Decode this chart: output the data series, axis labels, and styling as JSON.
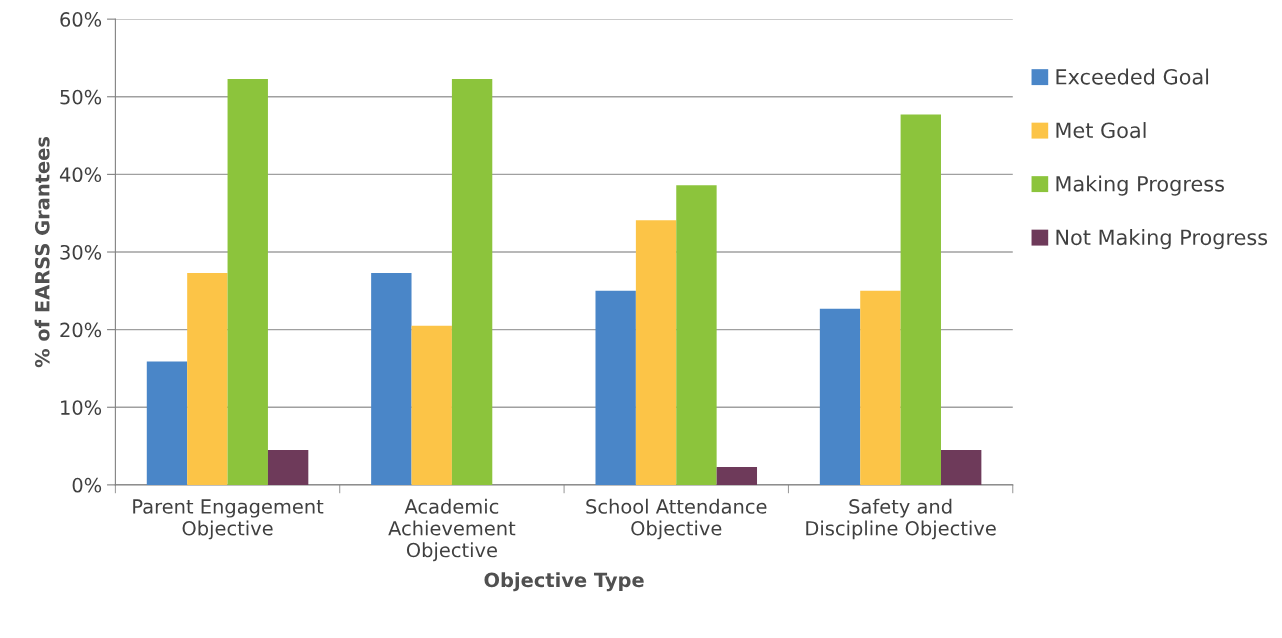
{
  "chart_data": {
    "type": "bar",
    "xlabel": "Objective Type",
    "ylabel": "% of EARSS Grantees",
    "categories": [
      "Parent Engagement\nObjective",
      "Academic\nAchievement\nObjective",
      "School Attendance\nObjective",
      "Safety and\nDiscipline Objective"
    ],
    "series": [
      {
        "name": "Exceeded Goal",
        "color": "#4a86c8",
        "values": [
          15.9,
          27.3,
          25.0,
          22.7
        ]
      },
      {
        "name": "Met Goal",
        "color": "#fcc447",
        "values": [
          27.3,
          20.5,
          34.1,
          25.0
        ]
      },
      {
        "name": "Making Progress",
        "color": "#8cc43c",
        "values": [
          52.3,
          52.3,
          38.6,
          47.7
        ]
      },
      {
        "name": "Not Making Progress",
        "color": "#6e3a5a",
        "values": [
          4.5,
          0,
          2.3,
          4.5
        ]
      }
    ],
    "ylim": [
      0,
      60
    ],
    "yticks": [
      {
        "value": 0,
        "label": "0%"
      },
      {
        "value": 10,
        "label": "10%"
      },
      {
        "value": 20,
        "label": "20%"
      },
      {
        "value": 30,
        "label": "30%"
      },
      {
        "value": 40,
        "label": "40%"
      },
      {
        "value": 50,
        "label": "50%"
      },
      {
        "value": 60,
        "label": "60%"
      }
    ],
    "grid": "y",
    "legend": "right"
  }
}
